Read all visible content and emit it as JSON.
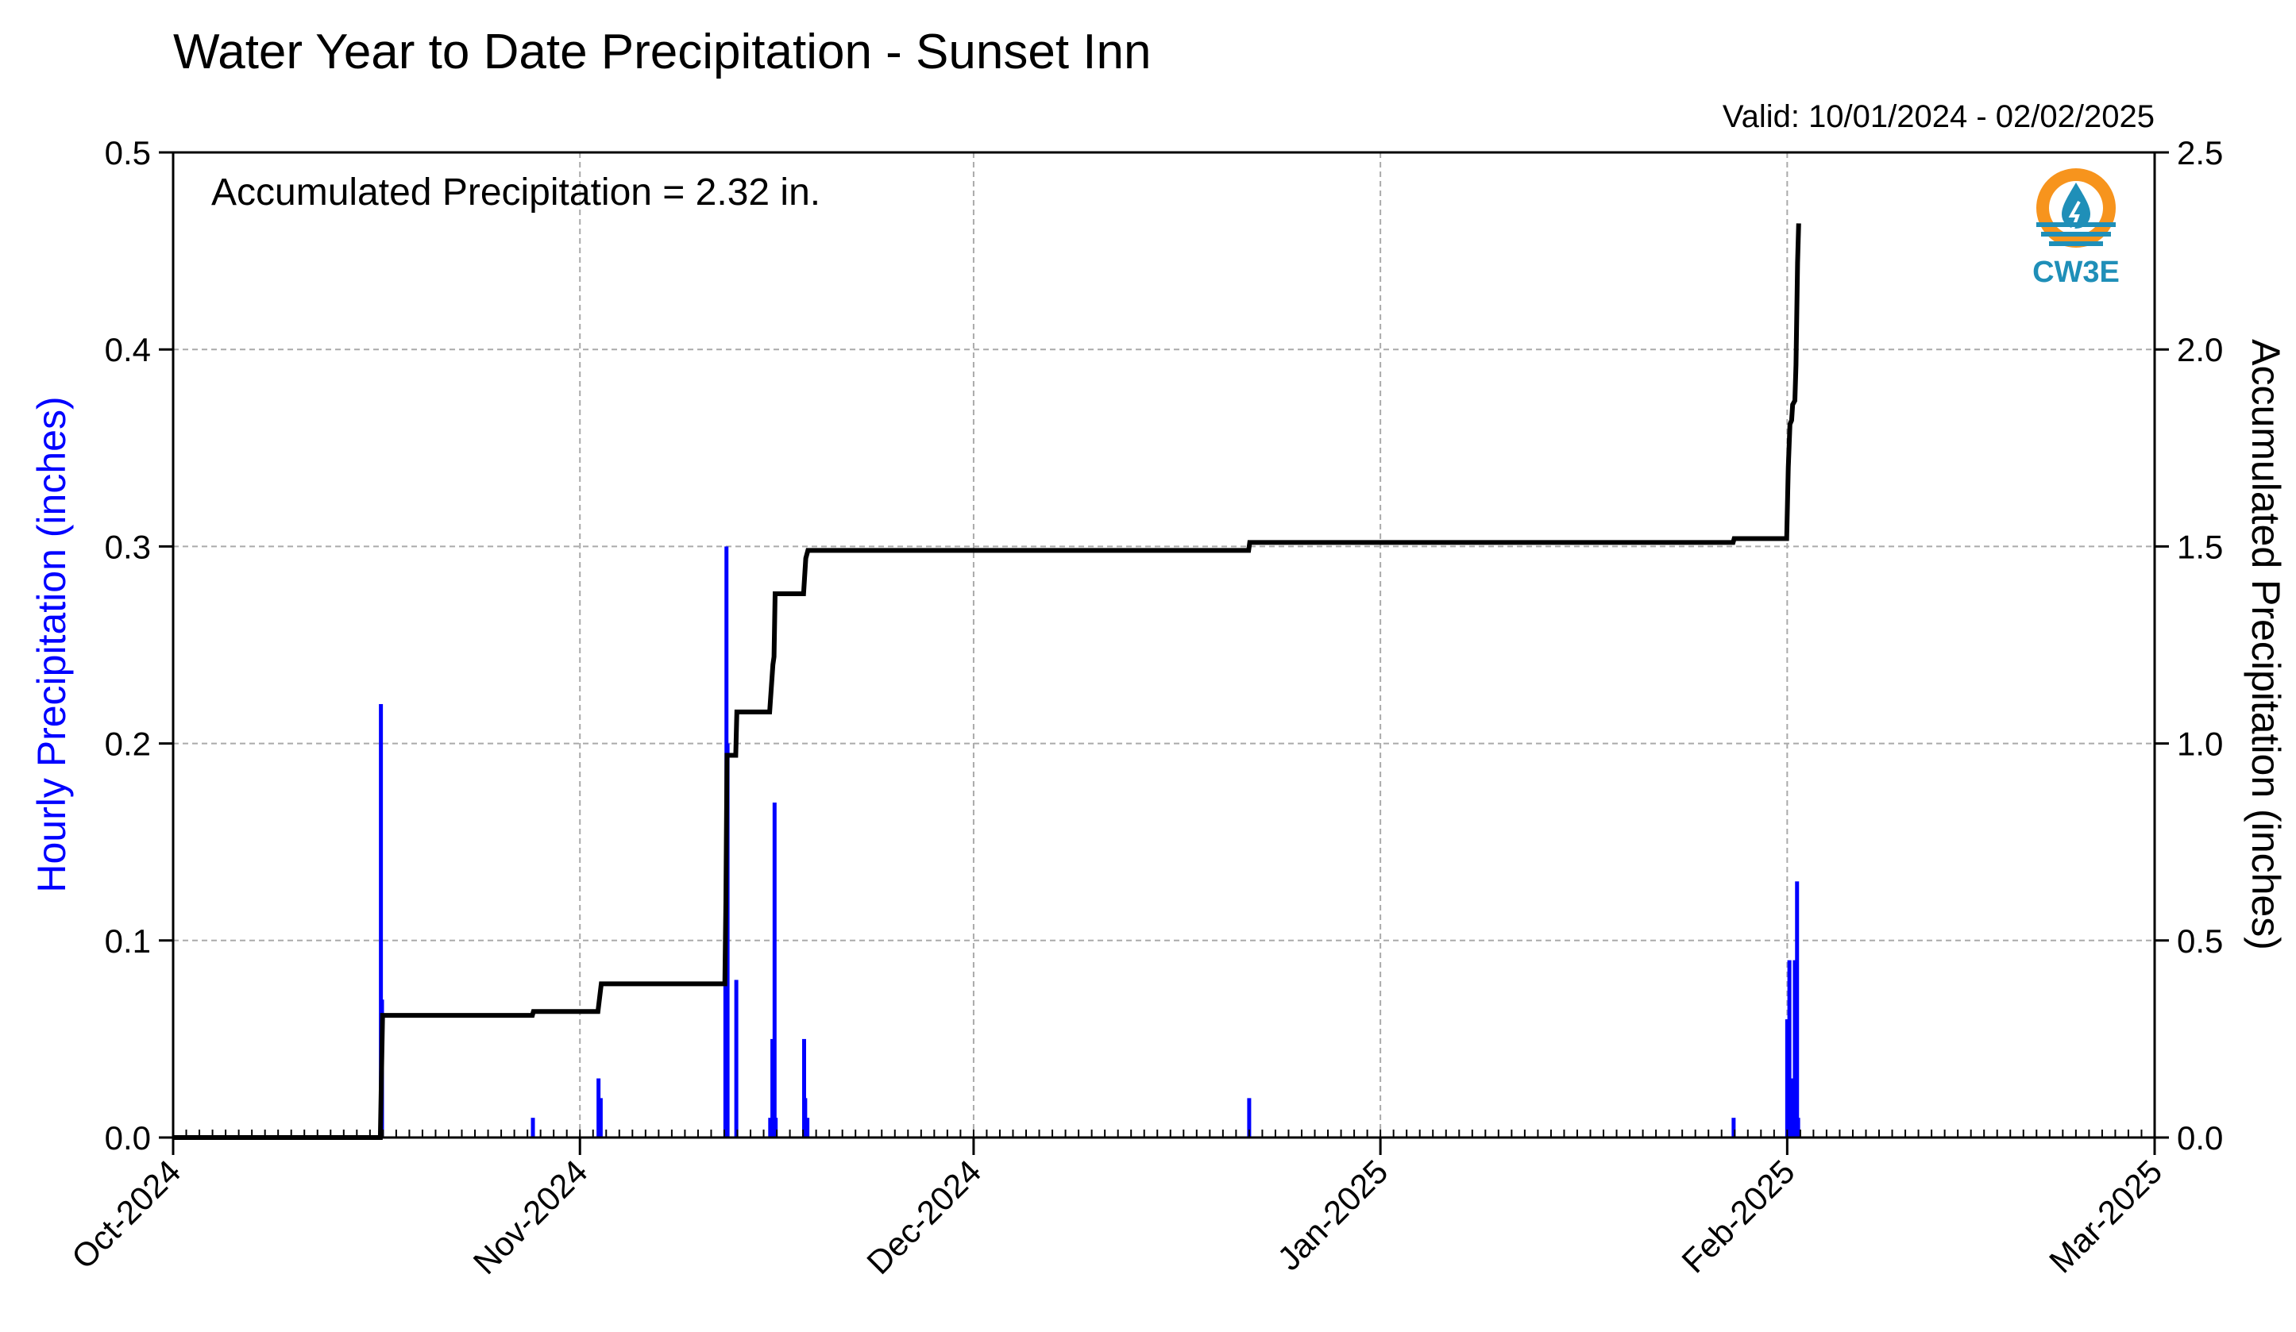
{
  "chart_data": {
    "type": "bar+line",
    "title": "Water Year to Date Precipitation - Sunset Inn",
    "valid_label": "Valid: 10/01/2024 - 02/02/2025",
    "annotation": "Accumulated Precipitation = 2.32 in.",
    "logo_label": "CW3E",
    "y_left_label": "Hourly Precipitation (inches)",
    "y_right_label": "Accumulated Precipitation (inches)",
    "x_range": [
      "2024-10-01",
      "2025-03-01"
    ],
    "y_left_range": [
      0,
      0.5
    ],
    "y_right_range": [
      0,
      2.5
    ],
    "y_left_ticks": [
      "0.0",
      "0.1",
      "0.2",
      "0.3",
      "0.4",
      "0.5"
    ],
    "y_right_ticks": [
      "0.0",
      "0.5",
      "1.0",
      "1.5",
      "2.0",
      "2.5"
    ],
    "x_ticks": [
      {
        "date": "2024-10-01",
        "label": "Oct-2024"
      },
      {
        "date": "2024-11-01",
        "label": "Nov-2024"
      },
      {
        "date": "2024-12-01",
        "label": "Dec-2024"
      },
      {
        "date": "2025-01-01",
        "label": "Jan-2025"
      },
      {
        "date": "2025-02-01",
        "label": "Feb-2025"
      },
      {
        "date": "2025-03-01",
        "label": "Mar-2025"
      }
    ],
    "grid": true,
    "colors": {
      "hourly": "#0000ff",
      "accumulated": "#000000",
      "grid": "#aaaaaa",
      "logo_orange": "#f7941d",
      "logo_blue": "#1f8fb8"
    },
    "hourly_series": {
      "name": "Hourly Precipitation",
      "points": [
        {
          "t": "2024-10-16T20:00",
          "v": 0.22
        },
        {
          "t": "2024-10-16T22:00",
          "v": 0.07
        },
        {
          "t": "2024-10-28T10:00",
          "v": 0.01
        },
        {
          "t": "2024-11-02T10:00",
          "v": 0.03
        },
        {
          "t": "2024-11-02T14:00",
          "v": 0.02
        },
        {
          "t": "2024-11-12T02:00",
          "v": 0.1
        },
        {
          "t": "2024-11-12T04:00",
          "v": 0.3
        },
        {
          "t": "2024-11-12T06:00",
          "v": 0.2
        },
        {
          "t": "2024-11-12T22:00",
          "v": 0.08
        },
        {
          "t": "2024-11-15T12:00",
          "v": 0.01
        },
        {
          "t": "2024-11-15T16:00",
          "v": 0.05
        },
        {
          "t": "2024-11-15T18:00",
          "v": 0.02
        },
        {
          "t": "2024-11-15T20:00",
          "v": 0.17
        },
        {
          "t": "2024-11-15T22:00",
          "v": 0.01
        },
        {
          "t": "2024-11-18T02:00",
          "v": 0.05
        },
        {
          "t": "2024-11-18T04:00",
          "v": 0.02
        },
        {
          "t": "2024-11-18T08:00",
          "v": 0.01
        },
        {
          "t": "2024-12-22T00:00",
          "v": 0.02
        },
        {
          "t": "2025-01-27T22:00",
          "v": 0.01
        },
        {
          "t": "2025-02-01T00:00",
          "v": 0.06
        },
        {
          "t": "2025-02-01T04:00",
          "v": 0.09
        },
        {
          "t": "2025-02-01T06:00",
          "v": 0.02
        },
        {
          "t": "2025-02-01T10:00",
          "v": 0.03
        },
        {
          "t": "2025-02-01T14:00",
          "v": 0.09
        },
        {
          "t": "2025-02-01T18:00",
          "v": 0.13
        },
        {
          "t": "2025-02-01T20:00",
          "v": 0.01
        }
      ]
    },
    "accumulated_series": {
      "name": "Accumulated Precipitation",
      "points": [
        {
          "t": "2024-10-01T00:00",
          "v": 0.0
        },
        {
          "t": "2024-10-16T19:00",
          "v": 0.0
        },
        {
          "t": "2024-10-16T23:00",
          "v": 0.31
        },
        {
          "t": "2024-10-28T09:00",
          "v": 0.31
        },
        {
          "t": "2024-10-28T11:00",
          "v": 0.32
        },
        {
          "t": "2024-11-02T09:00",
          "v": 0.32
        },
        {
          "t": "2024-11-02T15:00",
          "v": 0.39
        },
        {
          "t": "2024-11-12T01:00",
          "v": 0.39
        },
        {
          "t": "2024-11-12T03:00",
          "v": 0.6
        },
        {
          "t": "2024-11-12T05:00",
          "v": 0.97
        },
        {
          "t": "2024-11-12T08:00",
          "v": 0.97
        },
        {
          "t": "2024-11-12T21:00",
          "v": 0.97
        },
        {
          "t": "2024-11-12T23:00",
          "v": 1.08
        },
        {
          "t": "2024-11-15T11:00",
          "v": 1.08
        },
        {
          "t": "2024-11-15T17:00",
          "v": 1.2
        },
        {
          "t": "2024-11-15T19:00",
          "v": 1.22
        },
        {
          "t": "2024-11-15T21:00",
          "v": 1.38
        },
        {
          "t": "2024-11-18T01:00",
          "v": 1.38
        },
        {
          "t": "2024-11-18T05:00",
          "v": 1.47
        },
        {
          "t": "2024-11-18T09:00",
          "v": 1.49
        },
        {
          "t": "2024-12-21T23:00",
          "v": 1.49
        },
        {
          "t": "2024-12-22T01:00",
          "v": 1.51
        },
        {
          "t": "2025-01-27T21:00",
          "v": 1.51
        },
        {
          "t": "2025-01-27T23:00",
          "v": 1.52
        },
        {
          "t": "2025-01-31T23:00",
          "v": 1.52
        },
        {
          "t": "2025-02-01T02:00",
          "v": 1.7
        },
        {
          "t": "2025-02-01T05:00",
          "v": 1.81
        },
        {
          "t": "2025-02-01T08:00",
          "v": 1.82
        },
        {
          "t": "2025-02-01T10:00",
          "v": 1.86
        },
        {
          "t": "2025-02-01T14:00",
          "v": 1.87
        },
        {
          "t": "2025-02-01T16:00",
          "v": 1.96
        },
        {
          "t": "2025-02-01T19:00",
          "v": 2.22
        },
        {
          "t": "2025-02-01T21:00",
          "v": 2.32
        }
      ]
    }
  }
}
